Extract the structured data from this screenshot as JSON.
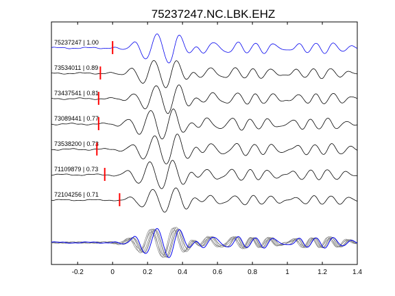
{
  "chart_data": {
    "type": "line",
    "title": "75237247.NC.LBK.EHZ",
    "xlabel": "",
    "ylabel": "",
    "xlim": [
      -0.35,
      1.4
    ],
    "xticks": [
      -0.2,
      0,
      0.2,
      0.4,
      0.6,
      0.8,
      1,
      1.2,
      1.4
    ],
    "xtick_labels": [
      "-0.2",
      "0",
      "0.2",
      "0.4",
      "0.6",
      "0.8",
      "1",
      "1.2",
      "1.4"
    ],
    "grid": false,
    "colors": {
      "reference": "#0000ee",
      "trace": "#000000",
      "pick": "#ff0000",
      "overlay": "#808080"
    },
    "series": [
      {
        "name": "75237247 | 1.00",
        "pick_x": 0.0,
        "lag": 0.0,
        "amplitude": 1.0
      },
      {
        "name": "73534011 | 0.89",
        "pick_x": -0.07,
        "lag": -0.01,
        "amplitude": 0.95
      },
      {
        "name": "73437541 | 0.81",
        "pick_x": -0.08,
        "lag": 0.01,
        "amplitude": 1.0
      },
      {
        "name": "73089441 | 0.77",
        "pick_x": -0.08,
        "lag": -0.015,
        "amplitude": 1.05
      },
      {
        "name": "73538200 | 0.73",
        "pick_x": -0.09,
        "lag": 0.015,
        "amplitude": 1.05
      },
      {
        "name": "71109879 | 0.73",
        "pick_x": -0.045,
        "lag": -0.005,
        "amplitude": 1.0
      },
      {
        "name": "72104256 | 0.71",
        "pick_x": 0.04,
        "lag": 0.02,
        "amplitude": 0.85
      }
    ],
    "stack": {
      "label": "",
      "style": "overlay of all traces"
    }
  }
}
